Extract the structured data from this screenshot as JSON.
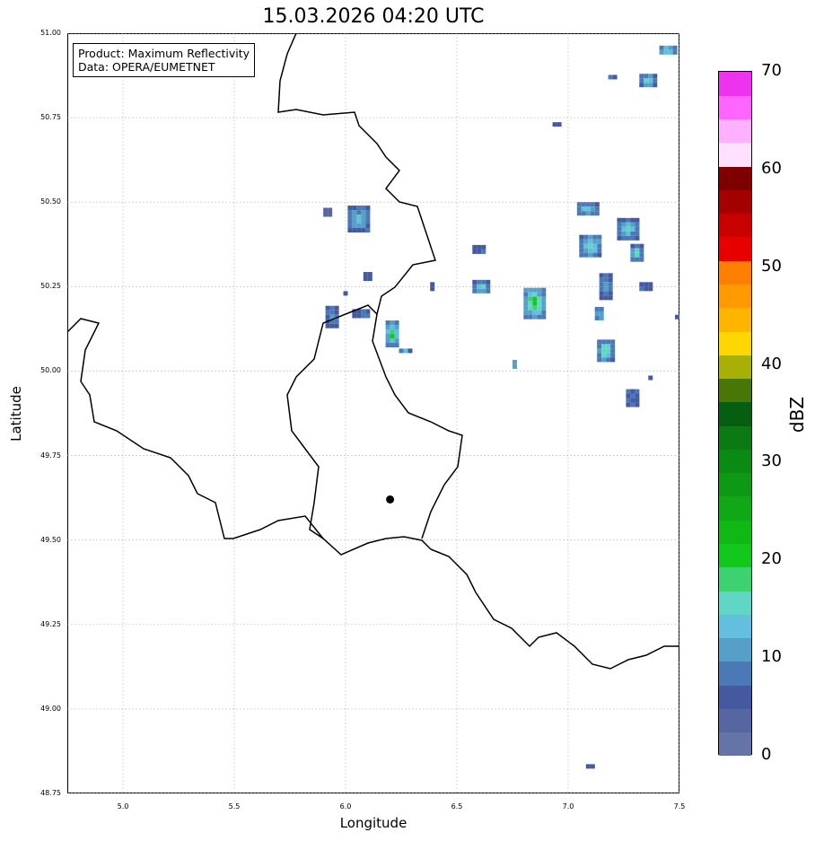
{
  "title": "15.03.2026 04:20 UTC",
  "legend": {
    "line1": "Product: Maximum Reflectivity",
    "line2": "Data: OPERA/EUMETNET"
  },
  "chart_data": {
    "type": "heatmap",
    "title": "15.03.2026 04:20 UTC",
    "xlabel": "Longitude",
    "ylabel": "Latitude",
    "xlim": [
      4.75,
      7.5
    ],
    "ylim": [
      48.75,
      51.0
    ],
    "xticks": [
      "5.0",
      "5.5",
      "6.0",
      "6.5",
      "7.0",
      "7.5"
    ],
    "yticks": [
      "48.75",
      "49.00",
      "49.25",
      "49.50",
      "49.75",
      "50.00",
      "50.25",
      "50.50",
      "50.75",
      "51.00"
    ],
    "grid": true,
    "marker": {
      "lon": 6.2,
      "lat": 49.62
    },
    "colorbar": {
      "label": "dBZ",
      "min": 0,
      "max": 70,
      "step": 2.5,
      "ticks": [
        "0",
        "10",
        "20",
        "30",
        "40",
        "50",
        "60",
        "70"
      ],
      "colors": [
        "#6574a6",
        "#5566a0",
        "#4459a0",
        "#4a79b5",
        "#559fc8",
        "#63bfdd",
        "#61d6c6",
        "#3ed16f",
        "#12c81a",
        "#10b814",
        "#10a816",
        "#0e9914",
        "#0a8a13",
        "#0b7a12",
        "#065f10",
        "#487708",
        "#a8b008",
        "#ffd700",
        "#ffb400",
        "#ff9a00",
        "#ff8000",
        "#e80000",
        "#c80000",
        "#a50000",
        "#7e0000",
        "#ffe0ff",
        "#ffb0ff",
        "#ff66ff",
        "#ee33ee"
      ]
    },
    "cells": [
      {
        "lon": 5.92,
        "lat": 50.47,
        "w": 2,
        "h": 2,
        "dbz": 3,
        "core": 3
      },
      {
        "lon": 6.06,
        "lat": 50.45,
        "w": 5,
        "h": 6,
        "dbz": 6,
        "core": 13
      },
      {
        "lon": 6.1,
        "lat": 50.28,
        "w": 2,
        "h": 2,
        "dbz": 5,
        "core": 5
      },
      {
        "lon": 5.94,
        "lat": 50.16,
        "w": 3,
        "h": 5,
        "dbz": 5,
        "core": 8
      },
      {
        "lon": 6.07,
        "lat": 50.17,
        "w": 4,
        "h": 2,
        "dbz": 5,
        "core": 10
      },
      {
        "lon": 6.21,
        "lat": 50.11,
        "w": 3,
        "h": 6,
        "dbz": 7,
        "core": 20
      },
      {
        "lon": 6.27,
        "lat": 50.06,
        "w": 3,
        "h": 1,
        "dbz": 5,
        "core": 12
      },
      {
        "lon": 6.39,
        "lat": 50.25,
        "w": 1,
        "h": 2,
        "dbz": 5,
        "core": 5
      },
      {
        "lon": 6.6,
        "lat": 50.36,
        "w": 3,
        "h": 2,
        "dbz": 5,
        "core": 5
      },
      {
        "lon": 6.61,
        "lat": 50.25,
        "w": 4,
        "h": 3,
        "dbz": 6,
        "core": 15
      },
      {
        "lon": 6.85,
        "lat": 50.2,
        "w": 5,
        "h": 7,
        "dbz": 8,
        "core": 22
      },
      {
        "lon": 6.76,
        "lat": 50.02,
        "w": 1,
        "h": 2,
        "dbz": 8,
        "core": 13
      },
      {
        "lon": 6.95,
        "lat": 50.73,
        "w": 2,
        "h": 1,
        "dbz": 5,
        "core": 5
      },
      {
        "lon": 7.09,
        "lat": 50.48,
        "w": 5,
        "h": 3,
        "dbz": 6,
        "core": 14
      },
      {
        "lon": 7.1,
        "lat": 50.37,
        "w": 5,
        "h": 5,
        "dbz": 6,
        "core": 16
      },
      {
        "lon": 7.17,
        "lat": 50.25,
        "w": 3,
        "h": 6,
        "dbz": 5,
        "core": 10
      },
      {
        "lon": 7.14,
        "lat": 50.17,
        "w": 2,
        "h": 3,
        "dbz": 6,
        "core": 15
      },
      {
        "lon": 7.17,
        "lat": 50.06,
        "w": 4,
        "h": 5,
        "dbz": 6,
        "core": 20
      },
      {
        "lon": 7.27,
        "lat": 50.42,
        "w": 5,
        "h": 5,
        "dbz": 6,
        "core": 15
      },
      {
        "lon": 7.31,
        "lat": 50.35,
        "w": 3,
        "h": 4,
        "dbz": 6,
        "core": 16
      },
      {
        "lon": 7.35,
        "lat": 50.25,
        "w": 3,
        "h": 2,
        "dbz": 5,
        "core": 5
      },
      {
        "lon": 7.29,
        "lat": 49.92,
        "w": 3,
        "h": 4,
        "dbz": 5,
        "core": 7
      },
      {
        "lon": 7.36,
        "lat": 50.86,
        "w": 4,
        "h": 3,
        "dbz": 6,
        "core": 15
      },
      {
        "lon": 7.45,
        "lat": 50.95,
        "w": 4,
        "h": 2,
        "dbz": 7,
        "core": 15
      },
      {
        "lon": 7.2,
        "lat": 50.87,
        "w": 2,
        "h": 1,
        "dbz": 5,
        "core": 5
      },
      {
        "lon": 7.1,
        "lat": 48.83,
        "w": 2,
        "h": 1,
        "dbz": 5,
        "core": 5
      },
      {
        "lon": 7.49,
        "lat": 50.16,
        "w": 1,
        "h": 1,
        "dbz": 5,
        "core": 5
      },
      {
        "lon": 7.37,
        "lat": 49.98,
        "w": 1,
        "h": 1,
        "dbz": 5,
        "core": 5
      },
      {
        "lon": 6.0,
        "lat": 50.23,
        "w": 1,
        "h": 1,
        "dbz": 5,
        "core": 5
      }
    ]
  }
}
